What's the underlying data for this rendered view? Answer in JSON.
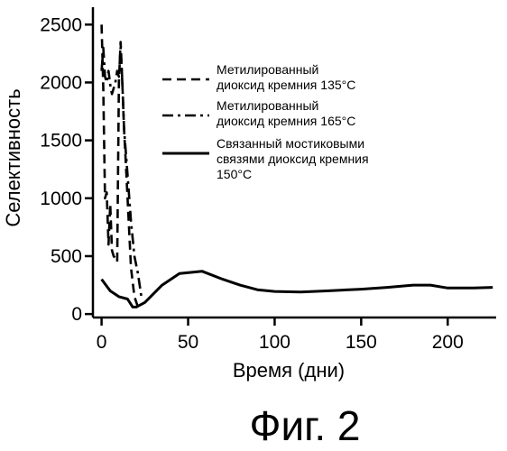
{
  "chart_data": {
    "type": "line",
    "title": "",
    "xlabel": "Время (дни)",
    "ylabel": "Селективность",
    "xlim": [
      -5,
      228
    ],
    "ylim": [
      -30,
      2650
    ],
    "xticks": [
      0,
      50,
      100,
      150,
      200
    ],
    "yticks": [
      0,
      500,
      1000,
      1500,
      2000,
      2500
    ],
    "grid": false,
    "legend_position": "top-right",
    "series": [
      {
        "name": "Метилированный диоксид кремния 135°C",
        "name_lines": [
          "Метилированный",
          "диоксид кремния 135°C"
        ],
        "style": "dash",
        "color": "#000000",
        "x": [
          0,
          1,
          2,
          3,
          4,
          5,
          6,
          7,
          8,
          9,
          10,
          11,
          12,
          13,
          14,
          15,
          16,
          17,
          19,
          21,
          23
        ],
        "y": [
          2500,
          1950,
          1000,
          1050,
          600,
          950,
          550,
          500,
          480,
          450,
          2000,
          2350,
          2000,
          1600,
          1300,
          1000,
          700,
          400,
          150,
          60,
          40
        ]
      },
      {
        "name": "Метилированный диоксид кремния 165°C",
        "name_lines": [
          "Метилированный",
          "диоксид кремния 165°C"
        ],
        "style": "dashdot",
        "color": "#000000",
        "x": [
          0,
          1,
          2,
          3,
          4,
          5,
          6,
          8,
          9,
          10,
          11,
          12,
          13,
          15,
          17,
          19,
          21,
          23
        ],
        "y": [
          2100,
          2300,
          2050,
          2000,
          2100,
          1980,
          1900,
          2000,
          2100,
          2050,
          2300,
          2000,
          1600,
          1200,
          800,
          500,
          350,
          150
        ]
      },
      {
        "name": "Связанный мостиковыми связями диоксид кремния 150°C",
        "name_lines": [
          "Связанный мостиковыми",
          "связями диоксид кремния",
          "150°C"
        ],
        "style": "solid",
        "color": "#000000",
        "x": [
          0,
          5,
          10,
          15,
          18,
          20,
          25,
          35,
          45,
          58,
          70,
          80,
          90,
          100,
          115,
          130,
          150,
          165,
          180,
          190,
          200,
          215,
          226
        ],
        "y": [
          300,
          200,
          150,
          130,
          60,
          60,
          100,
          250,
          350,
          370,
          300,
          250,
          210,
          195,
          190,
          200,
          215,
          230,
          250,
          250,
          225,
          225,
          230
        ]
      }
    ]
  },
  "caption": "Фиг. 2"
}
